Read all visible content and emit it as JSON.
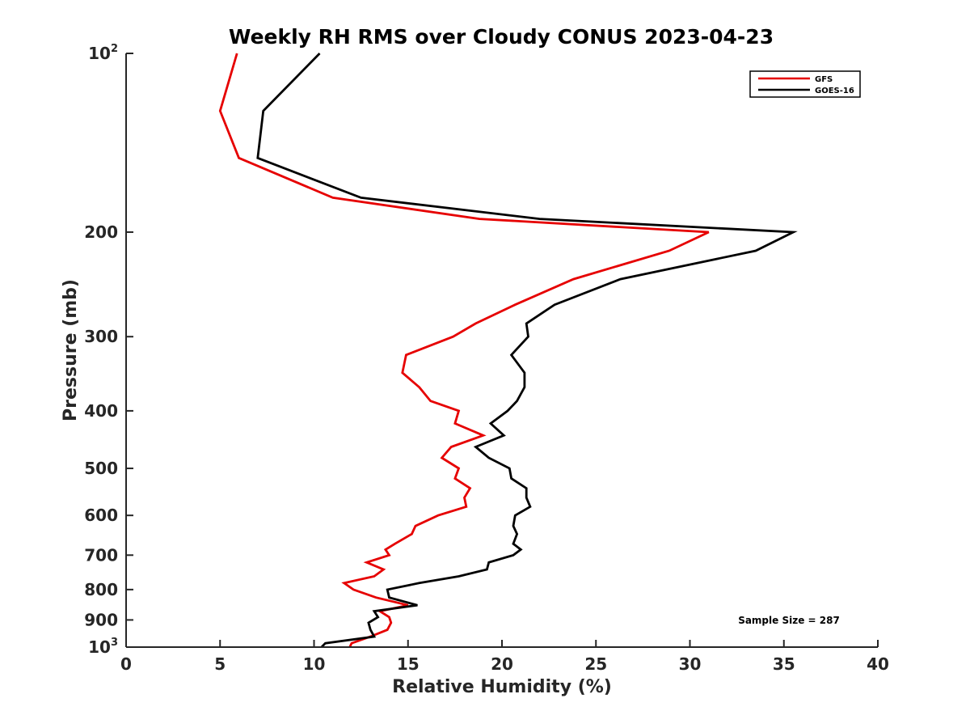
{
  "chart_data": {
    "type": "line",
    "title": "Weekly RH RMS over Cloudy CONUS 2023-04-23",
    "xlabel": "Relative Humidity (%)",
    "ylabel": "Pressure (mb)",
    "xlim": [
      0,
      40
    ],
    "ylim": [
      100,
      1000
    ],
    "y_scale": "log",
    "y_reversed": true,
    "x_ticks": [
      0,
      5,
      10,
      15,
      20,
      25,
      30,
      35,
      40
    ],
    "x_tick_labels": [
      "0",
      "5",
      "10",
      "15",
      "20",
      "25",
      "30",
      "35",
      "40"
    ],
    "y_ticks": [
      {
        "value": 100,
        "base": "10",
        "exp": "2"
      },
      {
        "value": 200,
        "base": "200",
        "exp": ""
      },
      {
        "value": 300,
        "base": "300",
        "exp": ""
      },
      {
        "value": 400,
        "base": "400",
        "exp": ""
      },
      {
        "value": 500,
        "base": "500",
        "exp": ""
      },
      {
        "value": 600,
        "base": "600",
        "exp": ""
      },
      {
        "value": 700,
        "base": "700",
        "exp": ""
      },
      {
        "value": 800,
        "base": "800",
        "exp": ""
      },
      {
        "value": 900,
        "base": "900",
        "exp": ""
      },
      {
        "value": 1000,
        "base": "10",
        "exp": "3"
      }
    ],
    "grid": false,
    "legend_position": "top-right",
    "annotation": "Sample Size = 287",
    "series": [
      {
        "name": "GFS",
        "color": "#e60000",
        "points": [
          [
            5.9,
            100
          ],
          [
            5.0,
            125
          ],
          [
            6.0,
            150
          ],
          [
            11.0,
            175
          ],
          [
            18.8,
            190
          ],
          [
            31.0,
            200
          ],
          [
            28.9,
            215
          ],
          [
            23.8,
            240
          ],
          [
            20.7,
            265
          ],
          [
            18.6,
            285
          ],
          [
            17.4,
            300
          ],
          [
            14.9,
            322
          ],
          [
            14.7,
            345
          ],
          [
            15.6,
            365
          ],
          [
            16.2,
            385
          ],
          [
            17.7,
            400
          ],
          [
            17.5,
            420
          ],
          [
            19.0,
            440
          ],
          [
            17.3,
            460
          ],
          [
            16.8,
            480
          ],
          [
            17.7,
            500
          ],
          [
            17.5,
            520
          ],
          [
            18.3,
            540
          ],
          [
            18.0,
            560
          ],
          [
            18.1,
            580
          ],
          [
            16.6,
            600
          ],
          [
            15.4,
            625
          ],
          [
            15.2,
            645
          ],
          [
            14.3,
            670
          ],
          [
            13.8,
            685
          ],
          [
            14.0,
            700
          ],
          [
            12.8,
            720
          ],
          [
            13.7,
            740
          ],
          [
            13.2,
            760
          ],
          [
            11.6,
            780
          ],
          [
            12.1,
            800
          ],
          [
            13.3,
            825
          ],
          [
            15.0,
            850
          ],
          [
            13.5,
            870
          ],
          [
            14.0,
            890
          ],
          [
            14.1,
            910
          ],
          [
            13.9,
            935
          ],
          [
            13.0,
            960
          ],
          [
            12.0,
            985
          ],
          [
            11.9,
            1000
          ]
        ]
      },
      {
        "name": "GOES-16",
        "color": "#000000",
        "points": [
          [
            10.3,
            100
          ],
          [
            7.3,
            125
          ],
          [
            7.0,
            150
          ],
          [
            12.5,
            175
          ],
          [
            22.0,
            190
          ],
          [
            35.5,
            200
          ],
          [
            33.5,
            215
          ],
          [
            26.3,
            240
          ],
          [
            22.8,
            265
          ],
          [
            21.3,
            285
          ],
          [
            21.4,
            300
          ],
          [
            20.5,
            322
          ],
          [
            21.2,
            345
          ],
          [
            21.2,
            365
          ],
          [
            20.8,
            385
          ],
          [
            20.3,
            400
          ],
          [
            19.4,
            420
          ],
          [
            20.1,
            440
          ],
          [
            18.6,
            460
          ],
          [
            19.3,
            480
          ],
          [
            20.4,
            500
          ],
          [
            20.5,
            520
          ],
          [
            21.3,
            540
          ],
          [
            21.3,
            560
          ],
          [
            21.5,
            580
          ],
          [
            20.7,
            600
          ],
          [
            20.6,
            625
          ],
          [
            20.8,
            645
          ],
          [
            20.6,
            670
          ],
          [
            21.0,
            685
          ],
          [
            20.6,
            700
          ],
          [
            19.3,
            720
          ],
          [
            19.2,
            740
          ],
          [
            17.7,
            760
          ],
          [
            15.6,
            780
          ],
          [
            13.9,
            800
          ],
          [
            14.0,
            825
          ],
          [
            15.5,
            850
          ],
          [
            13.2,
            870
          ],
          [
            13.4,
            890
          ],
          [
            12.9,
            910
          ],
          [
            13.0,
            935
          ],
          [
            13.2,
            960
          ],
          [
            10.6,
            985
          ],
          [
            10.4,
            1000
          ]
        ]
      }
    ]
  }
}
